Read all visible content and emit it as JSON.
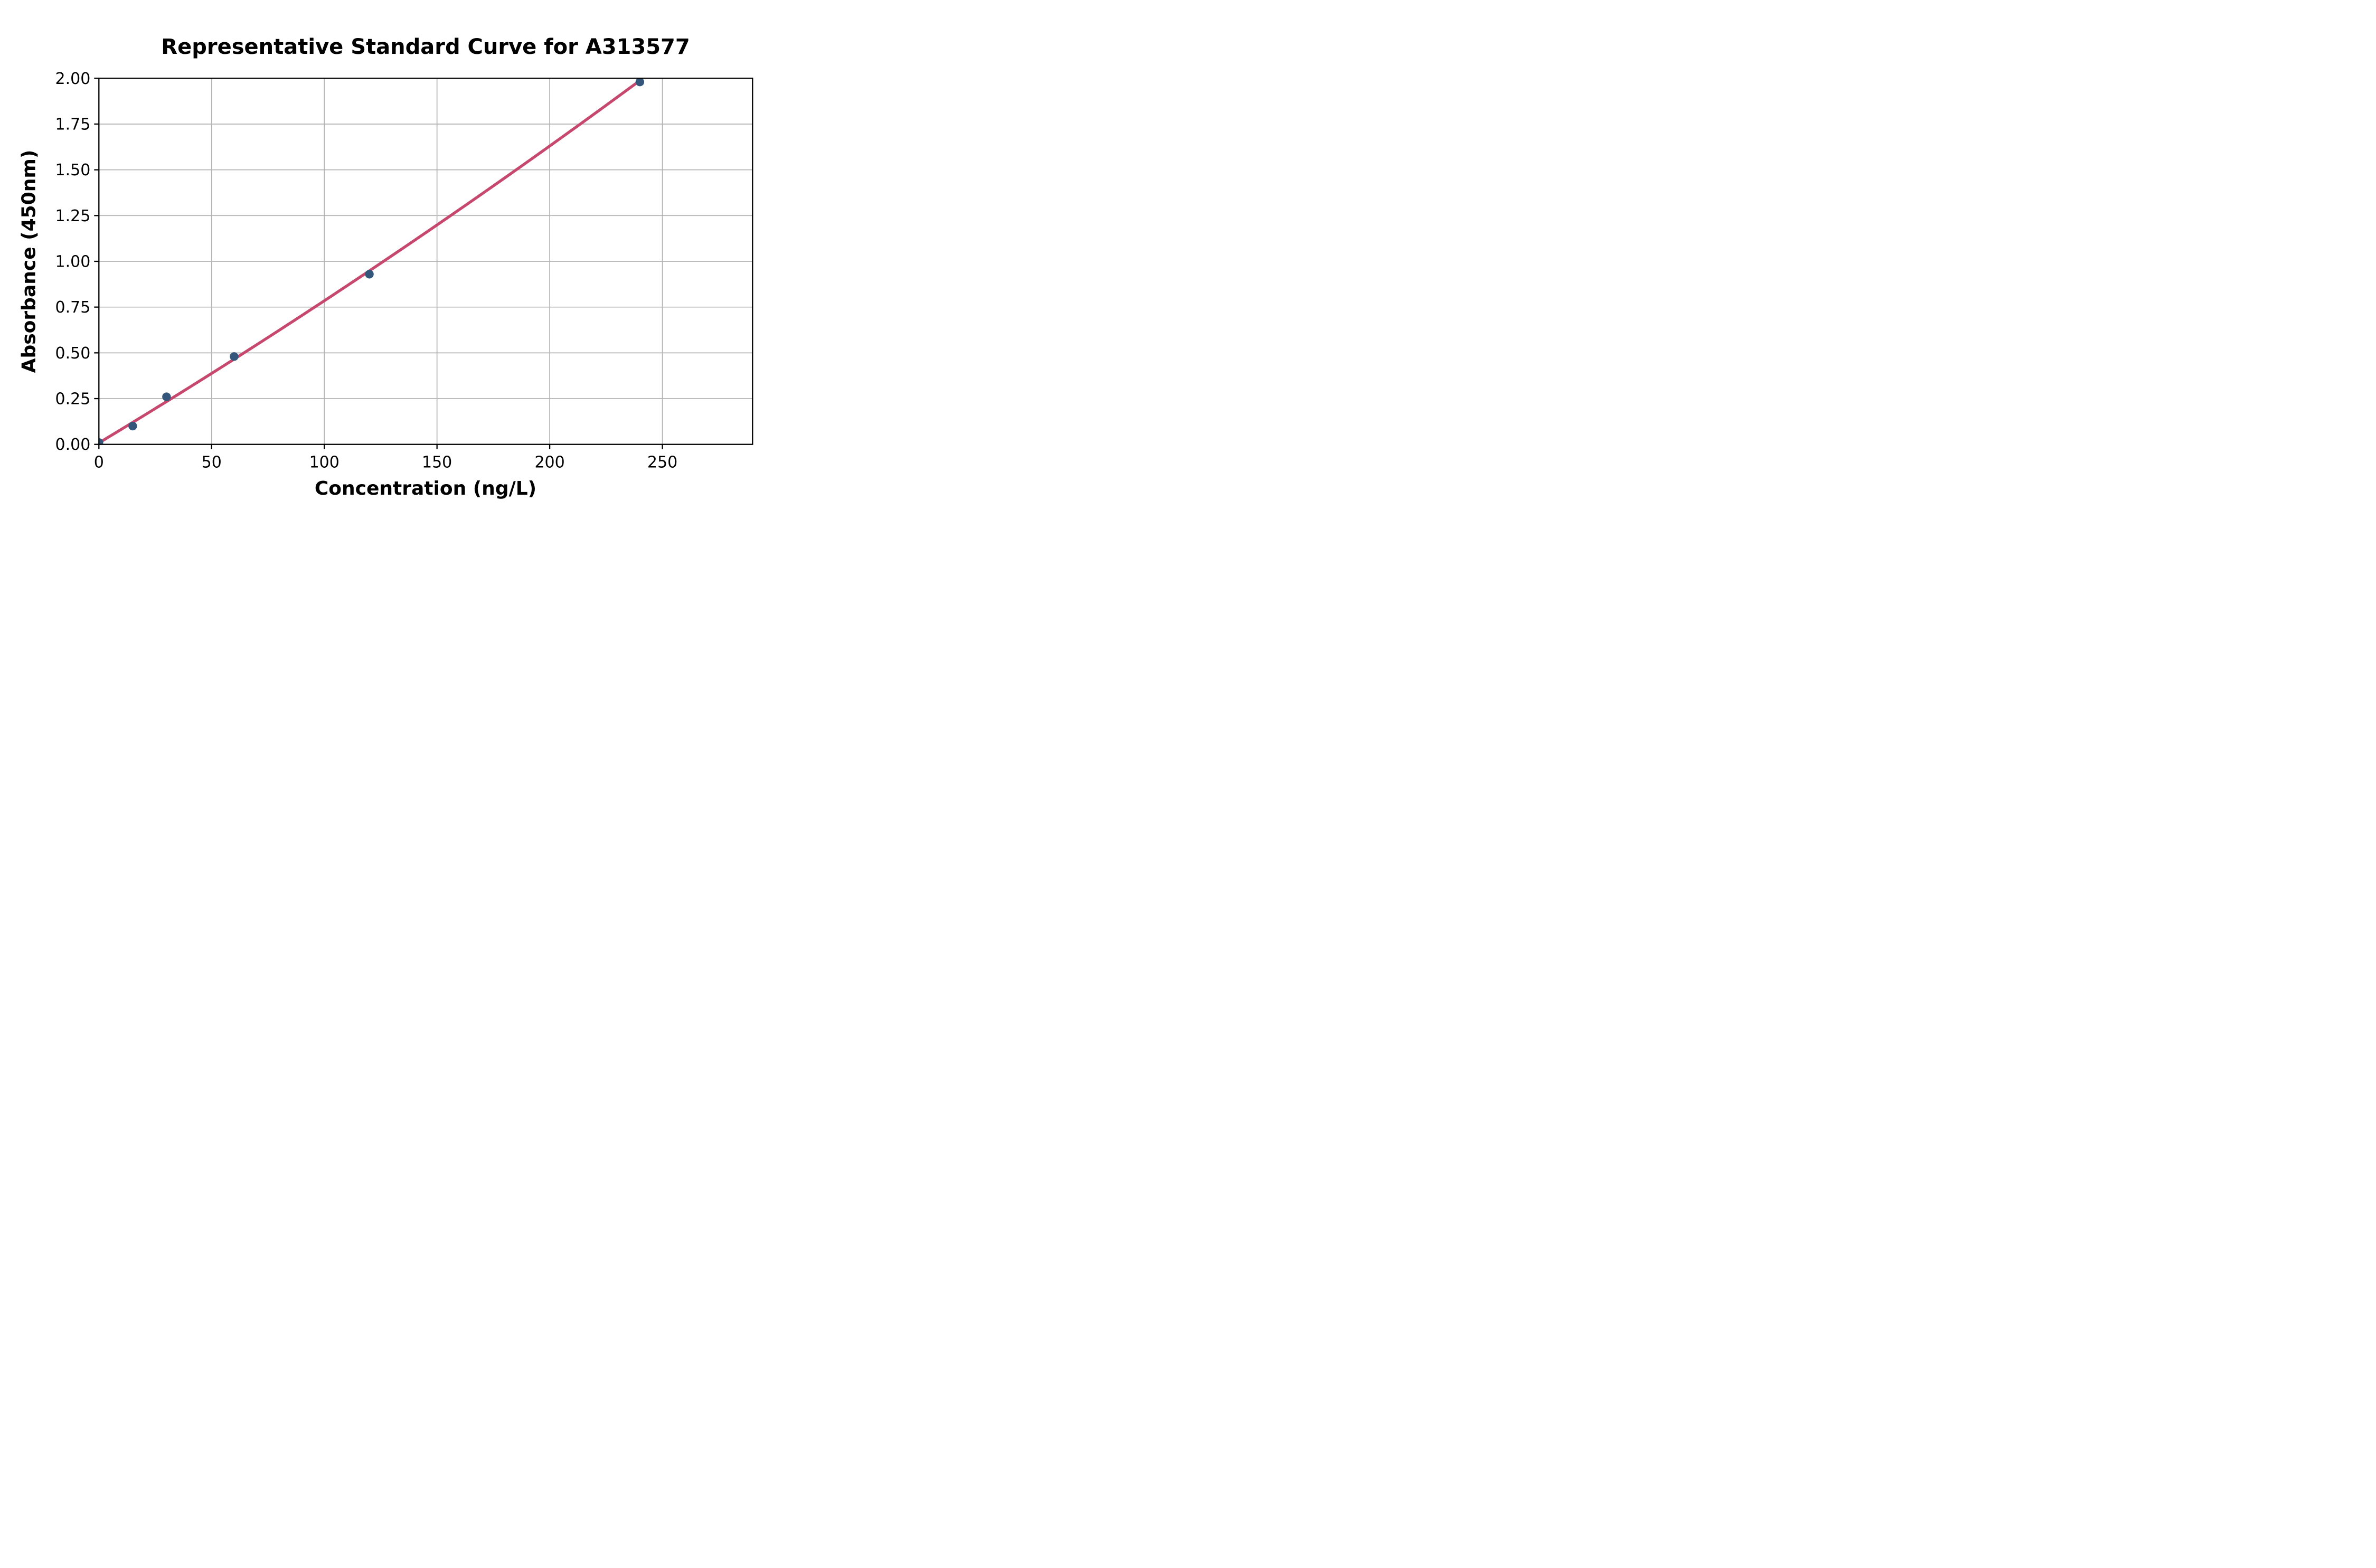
{
  "figure": {
    "background_color": "#FFFFFF"
  },
  "chart_data": {
    "type": "scatter",
    "title": "Representative Standard Curve for A313577",
    "xlabel": "Concentration (ng/L)",
    "ylabel": "Absorbance (450nm)",
    "xlim": [
      0,
      290
    ],
    "ylim": [
      0,
      2.0
    ],
    "grid": true,
    "legend": "none",
    "x_ticks": {
      "values": [
        0,
        50,
        100,
        150,
        200,
        250
      ],
      "labels": [
        "0",
        "50",
        "100",
        "150",
        "200",
        "250"
      ]
    },
    "y_ticks": {
      "values": [
        0,
        0.25,
        0.5,
        0.75,
        1.0,
        1.25,
        1.5,
        1.75,
        2.0
      ],
      "labels": [
        "0.00",
        "0.25",
        "0.50",
        "0.75",
        "1.00",
        "1.25",
        "1.50",
        "1.75",
        "2.00"
      ]
    },
    "series": [
      {
        "name": "standard-points",
        "type": "scatter",
        "marker": "circle",
        "color": "#33567A",
        "points": [
          {
            "x": 0,
            "y": 0.01
          },
          {
            "x": 15,
            "y": 0.1
          },
          {
            "x": 30,
            "y": 0.26
          },
          {
            "x": 60,
            "y": 0.48
          },
          {
            "x": 120,
            "y": 0.93
          },
          {
            "x": 240,
            "y": 1.98
          }
        ]
      },
      {
        "name": "fit-line",
        "type": "line",
        "color": "#C7486E",
        "x_range": [
          0,
          240
        ],
        "equation": "y = 0.008 + 0.00742x + 0.00000345x^2",
        "coefficients": {
          "a": 0.008,
          "b": 0.00742,
          "c": 3.45e-06
        }
      }
    ],
    "colors": {
      "marker": "#33567A",
      "line": "#C7486E",
      "grid": "#B3B3B3",
      "spine": "#000000",
      "text": "#000000",
      "background": "#FFFFFF"
    }
  }
}
